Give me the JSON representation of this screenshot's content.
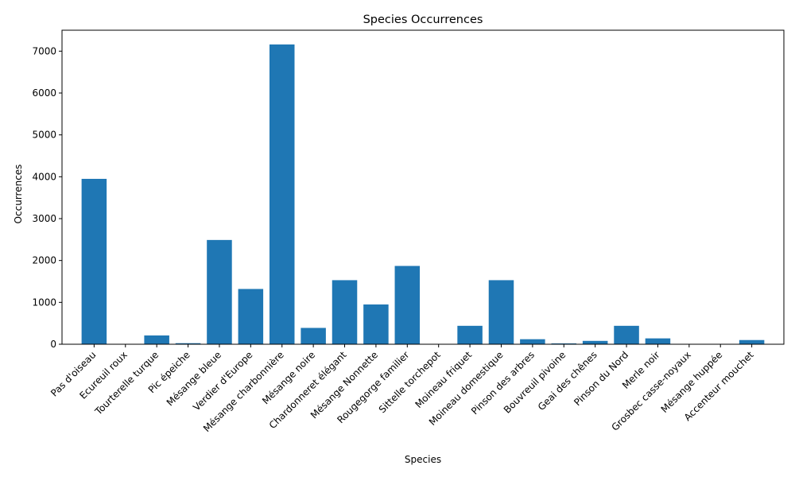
{
  "chart_data": {
    "type": "bar",
    "title": "Species Occurrences",
    "xlabel": "Species",
    "ylabel": "Occurrences",
    "ylim": [
      0,
      7500
    ],
    "yticks": [
      0,
      1000,
      2000,
      3000,
      4000,
      5000,
      6000,
      7000
    ],
    "grid": false,
    "bar_color": "#1f77b4",
    "categories": [
      "Pas d'oiseau",
      "Ecureuil roux",
      "Tourterelle turque",
      "Pic épeiche",
      "Mésange bleue",
      "Verdier d'Europe",
      "Mésange charbonnière",
      "Mésange noire",
      "Chardonneret élégant",
      "Mésange Nonnette",
      "Rougegorge familier",
      "Sittelle torchepot",
      "Moineau friquet",
      "Moineau domestique",
      "Pinson des arbres",
      "Bouvreuil pivoine",
      "Geai des chênes",
      "Pinson du Nord",
      "Merle noir",
      "Grosbec casse-noyaux",
      "Mésange huppée",
      "Accenteur mouchet"
    ],
    "values": [
      3950,
      5,
      210,
      25,
      2490,
      1320,
      7160,
      390,
      1530,
      950,
      1870,
      5,
      440,
      1530,
      120,
      20,
      80,
      440,
      140,
      5,
      5,
      100
    ]
  }
}
